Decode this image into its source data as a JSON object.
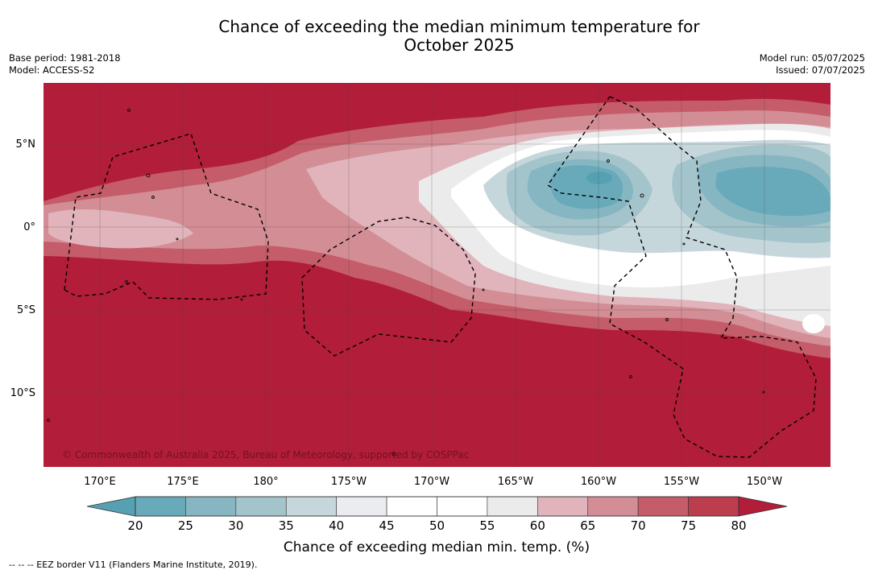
{
  "title_line1": "Chance of exceeding the median minimum temperature for",
  "title_line2": "October 2025",
  "meta_left": {
    "base_period": "Base period: 1981-2018",
    "model": "Model: ACCESS-S2"
  },
  "meta_right": {
    "model_run": "Model run: 05/07/2025",
    "issued": "Issued: 07/07/2025"
  },
  "map": {
    "lat_labels": [
      "5°N",
      "0°",
      "5°S",
      "10°S"
    ],
    "lon_labels": [
      "170°E",
      "175°E",
      "180°",
      "175°W",
      "170°W",
      "165°W",
      "160°W",
      "155°W",
      "150°W"
    ],
    "copyright": "© Commonwealth of Australia 2025, Bureau of Meteorology, supported by COSPPac"
  },
  "colorbar": {
    "ticks": [
      "20",
      "25",
      "30",
      "35",
      "40",
      "45",
      "50",
      "55",
      "60",
      "65",
      "70",
      "75",
      "80"
    ],
    "colors": [
      "#56a1b1",
      "#68aab9",
      "#86b6c2",
      "#a4c4cb",
      "#c6d7dc",
      "#eaecef",
      "#ffffff",
      "#ffffff",
      "#ebebec",
      "#e0b4ba",
      "#d38d95",
      "#c55c69",
      "#bc3d4d",
      "#b21d39"
    ],
    "label": "Chance of exceeding median min. temp. (%)"
  },
  "footer": "--  --  -- EEZ border V11 (Flanders Marine Institute, 2019)."
}
